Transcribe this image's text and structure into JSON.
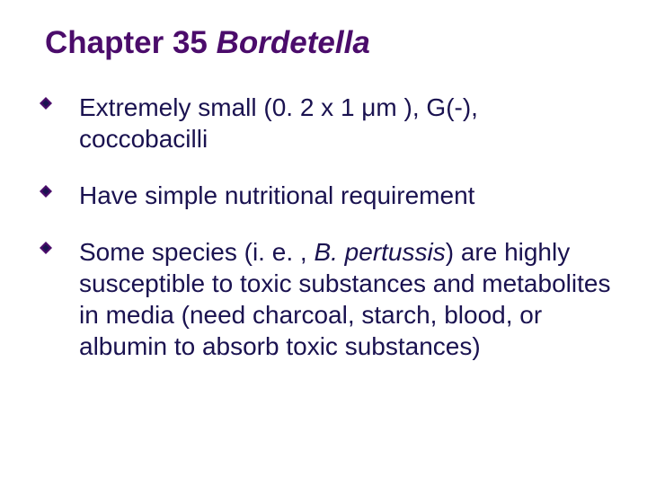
{
  "title_prefix": "Chapter 35  ",
  "title_italic": "Bordetella",
  "title_color": "#4b0c6b",
  "text_color": "#1a1250",
  "bullets": [
    {
      "segments": [
        {
          "text": "Extremely small (0. 2 x 1 μm ), G(-), coccobacilli",
          "italic": false
        }
      ]
    },
    {
      "segments": [
        {
          "text": "Have simple nutritional requirement",
          "italic": false
        }
      ]
    },
    {
      "segments": [
        {
          "text": "Some species (i. e. , ",
          "italic": false
        },
        {
          "text": "B. pertussis",
          "italic": true
        },
        {
          "text": ") are highly susceptible to toxic substances and metabolites in media (need charcoal, starch, blood, or albumin to absorb toxic substances)",
          "italic": false
        }
      ]
    }
  ],
  "marker": {
    "fill": "#4b0c6b",
    "stroke": "#1a1250"
  }
}
